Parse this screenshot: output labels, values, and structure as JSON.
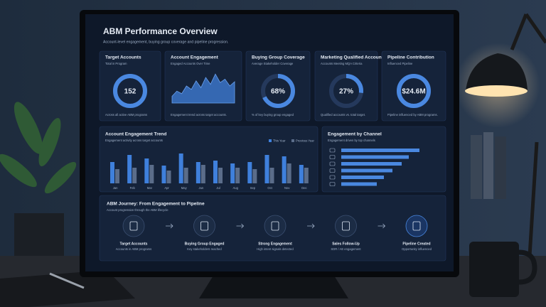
{
  "header": {
    "title": "ABM Performance Overview",
    "subtitle": "Account-level engagement, buying group coverage and pipeline progression."
  },
  "kpis": [
    {
      "title": "Target Accounts",
      "subtitle": "Total in Program",
      "value": 152,
      "caption": "Across all active ABM programs"
    },
    {
      "title": "Account Engagement",
      "subtitle": "Engaged Accounts Over Time",
      "values": [
        8,
        14,
        11,
        20,
        16,
        26,
        18,
        30,
        22,
        34,
        24,
        28,
        20,
        25
      ],
      "caption": "Engagement trend across target accounts."
    },
    {
      "title": "Buying Group Coverage",
      "subtitle": "Average Stakeholder Coverage",
      "value": 68,
      "value_label": "68%",
      "caption": "% of key buying group engaged"
    },
    {
      "title": "Marketing Qualified Accounts",
      "subtitle": "Accounts Meeting MQA Criteria",
      "value": 27,
      "value_label": "27%",
      "caption": "Qualified accounts vs. total target."
    },
    {
      "title": "Pipeline Contribution",
      "subtitle": "Influenced Pipeline",
      "value": 24600000,
      "value_label": "$24.6M",
      "caption": "Pipeline influenced by ABM programs."
    }
  ],
  "trend": {
    "type": "bar",
    "title": "Account Engagement Trend",
    "subtitle": "Engagement activity across target accounts",
    "categories": [
      "Jan",
      "Feb",
      "Mar",
      "Apr",
      "May",
      "Jun",
      "Jul",
      "Aug",
      "Sep",
      "Oct",
      "Nov",
      "Dec"
    ],
    "series": [
      {
        "name": "This Year",
        "color": "#3f80dc",
        "values": [
          30,
          40,
          35,
          25,
          42,
          30,
          32,
          28,
          30,
          40,
          38,
          26
        ]
      },
      {
        "name": "Previous Year",
        "color": "#5b6d8a",
        "values": [
          20,
          22,
          26,
          18,
          22,
          26,
          22,
          22,
          20,
          22,
          28,
          22
        ]
      }
    ]
  },
  "channels": {
    "type": "bar",
    "title": "Engagement by Channel",
    "subtitle": "Engagement driven by top channels",
    "values": [
      110,
      95,
      85,
      72,
      60,
      50
    ],
    "color": "#4a88e0"
  },
  "journey": {
    "title": "ABM Journey: From Engagement to Pipeline",
    "subtitle": "Account progression through the ABM lifecycle",
    "steps": [
      {
        "title": "Target Accounts",
        "subtitle": "Accounts in ABM programs"
      },
      {
        "title": "Buying Group Engaged",
        "subtitle": "Key stakeholders reached"
      },
      {
        "title": "Strong Engagement",
        "subtitle": "High intent signals detected"
      },
      {
        "title": "Sales Follow-Up",
        "subtitle": "SDR / AE engagement"
      },
      {
        "title": "Pipeline Created",
        "subtitle": "Opportunity influenced"
      }
    ]
  }
}
